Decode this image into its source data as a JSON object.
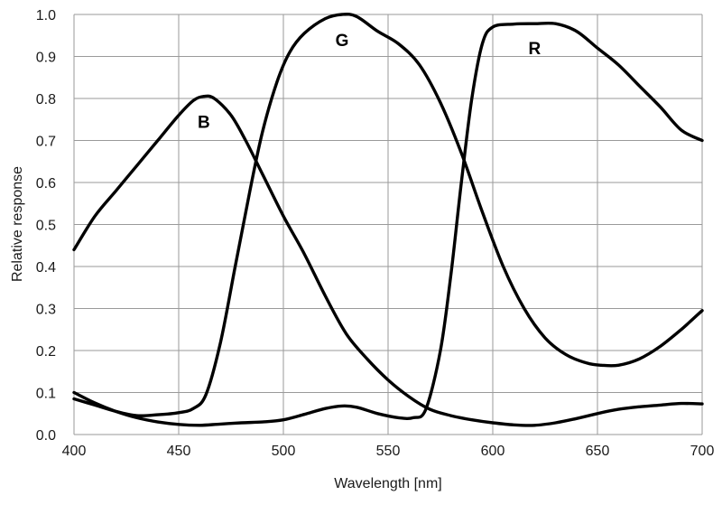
{
  "chart_data": {
    "type": "line",
    "xlabel": "Wavelength [nm]",
    "ylabel": "Relative response",
    "xlim": [
      400,
      700
    ],
    "ylim": [
      0,
      1.0
    ],
    "xticks": [
      "400",
      "450",
      "500",
      "550",
      "600",
      "650",
      "700"
    ],
    "yticks": [
      "0.0",
      "0.1",
      "0.2",
      "0.3",
      "0.4",
      "0.5",
      "0.6",
      "0.7",
      "0.8",
      "0.9",
      "1.0"
    ],
    "grid": true,
    "colors": {
      "line": "#000000",
      "grid": "#9a9a9a",
      "background": "#ffffff"
    },
    "series": [
      {
        "name": "B",
        "label_at": [
          462,
          0.73
        ],
        "points": [
          [
            400,
            0.44
          ],
          [
            410,
            0.52
          ],
          [
            420,
            0.58
          ],
          [
            430,
            0.64
          ],
          [
            440,
            0.7
          ],
          [
            450,
            0.76
          ],
          [
            457,
            0.795
          ],
          [
            462,
            0.805
          ],
          [
            467,
            0.8
          ],
          [
            475,
            0.76
          ],
          [
            482,
            0.7
          ],
          [
            490,
            0.62
          ],
          [
            500,
            0.52
          ],
          [
            510,
            0.43
          ],
          [
            520,
            0.33
          ],
          [
            530,
            0.24
          ],
          [
            540,
            0.18
          ],
          [
            550,
            0.13
          ],
          [
            560,
            0.09
          ],
          [
            570,
            0.06
          ],
          [
            580,
            0.045
          ],
          [
            590,
            0.035
          ],
          [
            600,
            0.028
          ],
          [
            610,
            0.023
          ],
          [
            620,
            0.022
          ],
          [
            630,
            0.028
          ],
          [
            640,
            0.038
          ],
          [
            650,
            0.05
          ],
          [
            660,
            0.06
          ],
          [
            670,
            0.066
          ],
          [
            680,
            0.07
          ],
          [
            690,
            0.074
          ],
          [
            700,
            0.073
          ]
        ]
      },
      {
        "name": "G",
        "label_at": [
          528,
          0.925
        ],
        "points": [
          [
            400,
            0.085
          ],
          [
            410,
            0.07
          ],
          [
            420,
            0.055
          ],
          [
            430,
            0.045
          ],
          [
            440,
            0.047
          ],
          [
            450,
            0.052
          ],
          [
            457,
            0.062
          ],
          [
            463,
            0.095
          ],
          [
            470,
            0.22
          ],
          [
            477,
            0.4
          ],
          [
            484,
            0.58
          ],
          [
            490,
            0.72
          ],
          [
            497,
            0.84
          ],
          [
            503,
            0.91
          ],
          [
            510,
            0.955
          ],
          [
            520,
            0.99
          ],
          [
            528,
            1.0
          ],
          [
            535,
            0.995
          ],
          [
            545,
            0.96
          ],
          [
            555,
            0.93
          ],
          [
            565,
            0.88
          ],
          [
            575,
            0.79
          ],
          [
            585,
            0.67
          ],
          [
            595,
            0.53
          ],
          [
            605,
            0.4
          ],
          [
            615,
            0.3
          ],
          [
            625,
            0.23
          ],
          [
            635,
            0.19
          ],
          [
            645,
            0.17
          ],
          [
            652,
            0.165
          ],
          [
            660,
            0.165
          ],
          [
            670,
            0.18
          ],
          [
            680,
            0.21
          ],
          [
            690,
            0.25
          ],
          [
            700,
            0.295
          ]
        ]
      },
      {
        "name": "R",
        "label_at": [
          620,
          0.905
        ],
        "points": [
          [
            400,
            0.1
          ],
          [
            410,
            0.075
          ],
          [
            420,
            0.055
          ],
          [
            430,
            0.04
          ],
          [
            440,
            0.03
          ],
          [
            450,
            0.024
          ],
          [
            460,
            0.022
          ],
          [
            470,
            0.025
          ],
          [
            480,
            0.028
          ],
          [
            490,
            0.03
          ],
          [
            500,
            0.035
          ],
          [
            510,
            0.048
          ],
          [
            520,
            0.062
          ],
          [
            528,
            0.068
          ],
          [
            535,
            0.065
          ],
          [
            545,
            0.05
          ],
          [
            555,
            0.04
          ],
          [
            562,
            0.04
          ],
          [
            568,
            0.06
          ],
          [
            575,
            0.2
          ],
          [
            580,
            0.38
          ],
          [
            585,
            0.6
          ],
          [
            590,
            0.8
          ],
          [
            595,
            0.93
          ],
          [
            600,
            0.97
          ],
          [
            610,
            0.977
          ],
          [
            620,
            0.978
          ],
          [
            630,
            0.978
          ],
          [
            640,
            0.96
          ],
          [
            650,
            0.92
          ],
          [
            660,
            0.88
          ],
          [
            670,
            0.83
          ],
          [
            680,
            0.78
          ],
          [
            690,
            0.725
          ],
          [
            700,
            0.7
          ]
        ]
      }
    ]
  }
}
